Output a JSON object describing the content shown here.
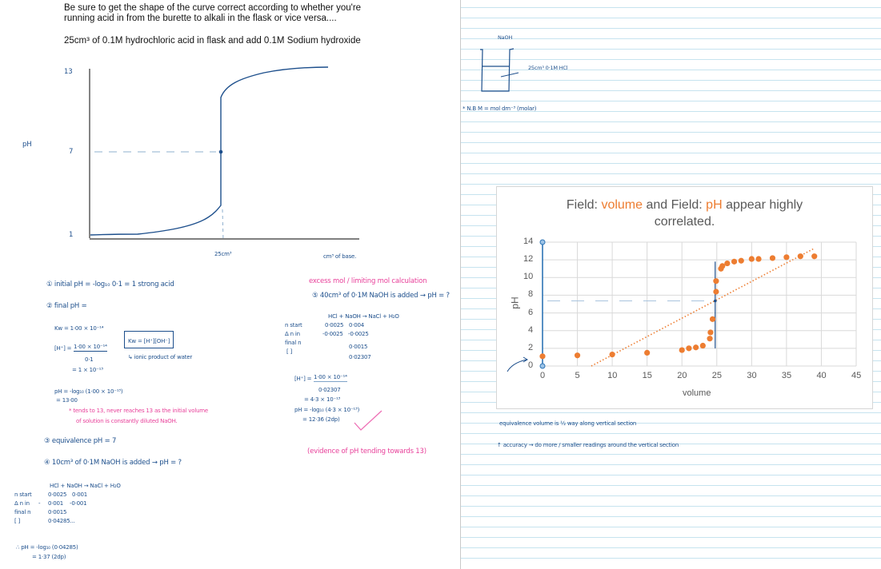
{
  "header": {
    "instruction_line1": "Be sure to get the shape of the curve correct according to whether you're",
    "instruction_line2": "running acid in from the burette to alkali in the flask or vice versa....",
    "setup": "25cm³ of 0.1M hydrochloric acid in flask and add 0.1M Sodium hydroxide"
  },
  "sketch": {
    "y_label": "pH",
    "y_ticks": [
      "13",
      "7",
      "1"
    ],
    "x_tick": "25cm³",
    "x_label": "cm³ of base.",
    "equivalence_point": {
      "x_label": "25cm³",
      "pH": 7
    }
  },
  "notes_left": {
    "n1": "① initial pH = -log₁₀ 0·1 = 1 strong acid",
    "n2": "② final pH =",
    "kw_value": "Kw = 1·00 × 10⁻¹⁴",
    "kw_formula": "Kw = [H⁺][OH⁻]",
    "kw_note": "↳ ionic product of water",
    "h_lhs": "[H⁺] =",
    "h_num": "1·00 × 10⁻¹⁴",
    "h_den": "0·1",
    "h_result": "= 1 × 10⁻¹³",
    "ph_line1": "pH = -log₁₀ (1·00 × 10⁻¹³)",
    "ph_line2": "= 13·00",
    "pink_note1": "* tends to 13, never reaches 13 as the initial volume",
    "pink_note2": "of solution is constantly diluted NaOH.",
    "n3": "③ equivalence pH = 7",
    "n4": "④ 10cm³ of 0·1M NaOH is added → pH = ?",
    "eq": "HCl + NaOH → NaCl + H₂O",
    "table": {
      "rows": [
        {
          "label": "n start",
          "hcl": "0·0025",
          "naoh": "0·001"
        },
        {
          "label": "Δ n in",
          "prefix": "-",
          "hcl": "0·001",
          "naoh": "-0·001"
        },
        {
          "label": "final n",
          "hcl": "0·0015",
          "naoh": ""
        },
        {
          "label": "[ ]",
          "hcl": "0·04285...",
          "naoh": ""
        }
      ]
    },
    "result1": "∴ pH = -log₁₀ (0·04285)",
    "result2": "= 1·37 (2dp)"
  },
  "notes_middle": {
    "pink_heading": "excess mol / limiting mol calculation",
    "n5": "⑤ 40cm³ of 0·1M NaOH is added → pH = ?",
    "eq": "HCl + NaOH → NaCl + H₂O",
    "table": {
      "rows": [
        {
          "label": "n start",
          "hcl": "0·0025",
          "naoh": "0·004"
        },
        {
          "label": "Δ n in",
          "hcl": "-0·0025",
          "naoh": "-0·0025"
        },
        {
          "label": "final n",
          "hcl": "",
          "naoh": "0·0015"
        },
        {
          "label": "[ ]",
          "hcl": "",
          "naoh": "0·02307"
        }
      ]
    },
    "h_lhs": "[H⁺] =",
    "h_num": "1·00 × 10⁻¹⁴",
    "h_den": "0·02307",
    "h_result": "= 4·3 × 10⁻¹³",
    "ph_line1": "pH = -log₁₀ (4·3 × 10⁻¹³)",
    "ph_line2": "= 12·36 (2dp)",
    "pink_note": "(evidence of pH tending towards 13)"
  },
  "right_page": {
    "burette_label": "NaOH",
    "flask_label": "25cm³ 0·1M HCl",
    "nb_note": "* N.B M = mol dm⁻³ (molar)",
    "note_equivalence": "equivalence volume is ½ way along vertical section",
    "note_accuracy": "↑ accuracy → do more / smaller readings around the vertical section"
  },
  "chart_data": {
    "type": "scatter",
    "title": "Field: volume and Field: pH appear highly correlated.",
    "title_parts": [
      {
        "text": "Field: ",
        "highlight": false
      },
      {
        "text": "volume",
        "highlight": true
      },
      {
        "text": " and Field: ",
        "highlight": false
      },
      {
        "text": "pH",
        "highlight": true
      },
      {
        "text": " appear highly",
        "highlight": false
      }
    ],
    "title_line2": "correlated.",
    "xlabel": "volume",
    "ylabel": "pH",
    "xlim": [
      0,
      45
    ],
    "ylim": [
      0,
      14
    ],
    "x_ticks": [
      0,
      5,
      10,
      15,
      20,
      25,
      30,
      35,
      40,
      45
    ],
    "y_ticks": [
      0,
      2,
      4,
      6,
      8,
      10,
      12,
      14
    ],
    "grid": true,
    "legend": "none",
    "series": [
      {
        "name": "pH",
        "color": "#ed7d31",
        "points": [
          [
            0,
            1.1
          ],
          [
            5,
            1.2
          ],
          [
            10,
            1.3
          ],
          [
            15,
            1.5
          ],
          [
            20,
            1.8
          ],
          [
            21,
            2.0
          ],
          [
            22,
            2.1
          ],
          [
            23,
            2.3
          ],
          [
            24,
            3.1
          ],
          [
            24.1,
            3.8
          ],
          [
            24.4,
            5.3
          ],
          [
            24.9,
            8.4
          ],
          [
            24.9,
            9.6
          ],
          [
            25.6,
            11.0
          ],
          [
            25.8,
            11.3
          ],
          [
            26.5,
            11.6
          ],
          [
            27.5,
            11.8
          ],
          [
            28.5,
            11.9
          ],
          [
            30,
            12.1
          ],
          [
            31,
            12.1
          ],
          [
            33,
            12.2
          ],
          [
            35,
            12.3
          ],
          [
            37,
            12.4
          ],
          [
            39,
            12.4
          ]
        ]
      }
    ],
    "trendline": {
      "style": "dotted",
      "color": "#ed7d31",
      "from": [
        7,
        0
      ],
      "to": [
        39,
        13.3
      ]
    },
    "annotations": {
      "y_axis_marker": {
        "x": 0,
        "from": 0,
        "to": 14,
        "color": "#2e75b6"
      },
      "equivalence_vertical": {
        "x": 25,
        "from": 2,
        "to": 11.8,
        "color": "#1d4f8c"
      },
      "equivalence_dashed": {
        "y": 7,
        "from_x": 0,
        "to_x": 25
      },
      "equivalence_point": [
        25,
        7
      ]
    }
  }
}
